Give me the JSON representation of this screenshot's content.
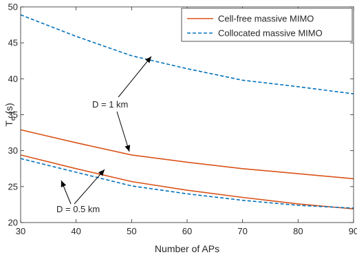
{
  "chart_data": {
    "type": "line",
    "xlabel": "Number of APs",
    "ylabel_main": "T",
    "ylabel_sub": "e",
    "ylabel_unit": " (s)",
    "xlim": [
      30,
      90
    ],
    "ylim": [
      20,
      50
    ],
    "xticks": [
      "30",
      "40",
      "50",
      "60",
      "70",
      "80",
      "90"
    ],
    "yticks": [
      "20",
      "25",
      "30",
      "35",
      "40",
      "45",
      "50"
    ],
    "grid": false,
    "legend_position": "top-right",
    "colors": {
      "cellfree": "#d95319",
      "collocated": "#0072bd",
      "axis": "#262626"
    },
    "legend": [
      {
        "label": "Cell-free massive MIMO",
        "color": "#d95319",
        "style": "solid"
      },
      {
        "label": "Collocated massive MIMO",
        "color": "#0072bd",
        "style": "dashed"
      }
    ],
    "series": [
      {
        "group": "Cell-free massive MIMO",
        "D": "1 km",
        "color": "#d95319",
        "style": "solid",
        "x": [
          30,
          40,
          50,
          60,
          70,
          80,
          90
        ],
        "y": [
          32.9,
          31.1,
          29.4,
          28.4,
          27.5,
          26.8,
          26.1
        ]
      },
      {
        "group": "Cell-free massive MIMO",
        "D": "0.5 km",
        "color": "#d95319",
        "style": "solid",
        "x": [
          30,
          40,
          50,
          60,
          70,
          80,
          90
        ],
        "y": [
          29.4,
          27.5,
          25.7,
          24.5,
          23.5,
          22.6,
          21.9
        ]
      },
      {
        "group": "Collocated massive MIMO",
        "D": "1 km",
        "color": "#0072bd",
        "style": "dashed",
        "x": [
          30,
          40,
          50,
          60,
          70,
          80,
          90
        ],
        "y": [
          48.9,
          45.9,
          43.2,
          41.4,
          39.8,
          38.9,
          37.9
        ]
      },
      {
        "group": "Collocated massive MIMO",
        "D": "0.5 km",
        "color": "#0072bd",
        "style": "dashed",
        "x": [
          30,
          40,
          50,
          60,
          70,
          80,
          90
        ],
        "y": [
          28.9,
          27.0,
          25.1,
          24.0,
          23.1,
          22.4,
          22.0
        ]
      }
    ],
    "annotations": [
      {
        "text": "D = 1 km"
      },
      {
        "text": "D = 0.5 km"
      }
    ]
  }
}
